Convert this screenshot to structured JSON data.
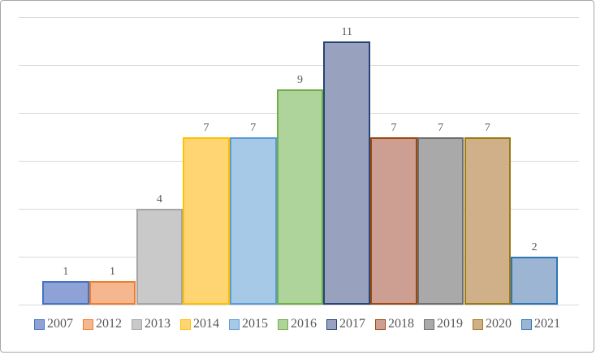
{
  "chart_data": {
    "type": "bar",
    "title": "",
    "categories": [
      "2007",
      "2012",
      "2013",
      "2014",
      "2015",
      "2016",
      "2017",
      "2018",
      "2019",
      "2020",
      "2021"
    ],
    "values": [
      1,
      1,
      4,
      7,
      7,
      9,
      11,
      7,
      7,
      7,
      2
    ],
    "data_labels": [
      "1",
      "1",
      "4",
      "7",
      "7",
      "9",
      "11",
      "7",
      "7",
      "7",
      "2"
    ],
    "xlabel": "",
    "ylabel": "",
    "ylim": [
      0,
      12
    ],
    "gridline_step": 2,
    "grid": true,
    "axis_tick_labels_visible": false,
    "legend_position": "bottom",
    "series_colors": [
      {
        "name": "2007",
        "border": "#4472c4",
        "fill": "#8fa2d6"
      },
      {
        "name": "2012",
        "border": "#ed7d31",
        "fill": "#f4b78e"
      },
      {
        "name": "2013",
        "border": "#a5a5a5",
        "fill": "#c9c9c9"
      },
      {
        "name": "2014",
        "border": "#ffc000",
        "fill": "#ffd573"
      },
      {
        "name": "2015",
        "border": "#5b9bd5",
        "fill": "#a7c9e8"
      },
      {
        "name": "2016",
        "border": "#70ad47",
        "fill": "#aed49b"
      },
      {
        "name": "2017",
        "border": "#264478",
        "fill": "#98a2bf"
      },
      {
        "name": "2018",
        "border": "#9e480e",
        "fill": "#cd9e92"
      },
      {
        "name": "2019",
        "border": "#6e6e6e",
        "fill": "#a9a9a9"
      },
      {
        "name": "2020",
        "border": "#9c7a14",
        "fill": "#cfb089"
      },
      {
        "name": "2021",
        "border": "#2e75b6",
        "fill": "#9cb5d3"
      }
    ],
    "colors": {
      "gridline": "#d9d9d9",
      "label_text": "#595959",
      "frame_border": "#a6a6a6",
      "background": "#ffffff"
    }
  }
}
